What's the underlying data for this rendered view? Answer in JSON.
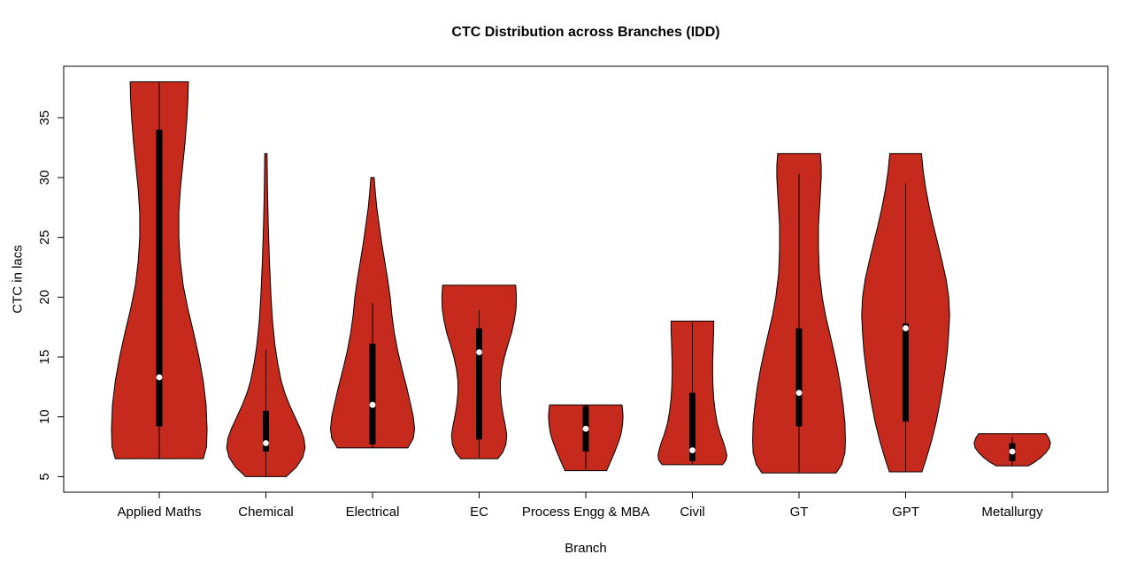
{
  "chart_data": {
    "type": "violin",
    "title": "CTC Distribution across Branches (IDD)",
    "xlabel": "Branch",
    "ylabel": "CTC in lacs",
    "ylim": [
      3.7,
      39.3
    ],
    "yticks": [
      5,
      10,
      15,
      20,
      25,
      30,
      35
    ],
    "grid": false,
    "legend": "none",
    "fill_color": "#C62A1C",
    "outline_color": "#000000",
    "box_color": "#000000",
    "median_color": "#FFFFFF",
    "violins": [
      {
        "label": "Applied Maths",
        "min": 6.5,
        "max": 38.0,
        "q1": 9.2,
        "median": 13.3,
        "q3": 34.0,
        "whisker_low": 6.5,
        "whisker_high": 38.0,
        "width_scale": 1.0,
        "profile": [
          [
            6.5,
            0.92
          ],
          [
            7.5,
            0.99
          ],
          [
            9,
            1.0
          ],
          [
            11,
            0.98
          ],
          [
            13,
            0.92
          ],
          [
            15,
            0.83
          ],
          [
            17,
            0.72
          ],
          [
            19,
            0.6
          ],
          [
            21,
            0.5
          ],
          [
            23,
            0.44
          ],
          [
            25,
            0.41
          ],
          [
            27,
            0.41
          ],
          [
            29,
            0.44
          ],
          [
            31,
            0.49
          ],
          [
            33,
            0.54
          ],
          [
            35,
            0.58
          ],
          [
            36.5,
            0.6
          ],
          [
            38,
            0.61
          ]
        ]
      },
      {
        "label": "Chemical",
        "min": 5.0,
        "max": 32.0,
        "q1": 7.1,
        "median": 7.8,
        "q3": 10.5,
        "whisker_low": 5.0,
        "whisker_high": 15.6,
        "width_scale": 0.82,
        "profile": [
          [
            5,
            0.52
          ],
          [
            5.8,
            0.78
          ],
          [
            6.6,
            0.94
          ],
          [
            7.4,
            1.0
          ],
          [
            8.2,
            0.97
          ],
          [
            9,
            0.88
          ],
          [
            10,
            0.74
          ],
          [
            11,
            0.6
          ],
          [
            12,
            0.48
          ],
          [
            13,
            0.39
          ],
          [
            14.5,
            0.3
          ],
          [
            16,
            0.23
          ],
          [
            18,
            0.17
          ],
          [
            20,
            0.13
          ],
          [
            23,
            0.09
          ],
          [
            26,
            0.06
          ],
          [
            29,
            0.04
          ],
          [
            32,
            0.03
          ]
        ]
      },
      {
        "label": "Electrical",
        "min": 7.4,
        "max": 30.0,
        "q1": 7.7,
        "median": 11.0,
        "q3": 16.1,
        "whisker_low": 7.4,
        "whisker_high": 19.5,
        "width_scale": 0.88,
        "profile": [
          [
            7.4,
            0.84
          ],
          [
            8.2,
            0.97
          ],
          [
            9,
            1.0
          ],
          [
            10,
            0.97
          ],
          [
            11,
            0.91
          ],
          [
            12.5,
            0.81
          ],
          [
            14,
            0.7
          ],
          [
            15.5,
            0.6
          ],
          [
            17,
            0.52
          ],
          [
            18.5,
            0.46
          ],
          [
            20,
            0.42
          ],
          [
            21.5,
            0.36
          ],
          [
            23,
            0.29
          ],
          [
            24.5,
            0.22
          ],
          [
            26,
            0.16
          ],
          [
            27.5,
            0.1
          ],
          [
            29,
            0.06
          ],
          [
            30,
            0.04
          ]
        ]
      },
      {
        "label": "EC",
        "min": 6.5,
        "max": 21.0,
        "q1": 8.1,
        "median": 15.4,
        "q3": 17.4,
        "whisker_low": 6.6,
        "whisker_high": 18.9,
        "width_scale": 0.78,
        "profile": [
          [
            6.5,
            0.5
          ],
          [
            7,
            0.63
          ],
          [
            7.7,
            0.72
          ],
          [
            8.5,
            0.74
          ],
          [
            9.3,
            0.7
          ],
          [
            10.2,
            0.64
          ],
          [
            11,
            0.6
          ],
          [
            12,
            0.57
          ],
          [
            13,
            0.57
          ],
          [
            14,
            0.61
          ],
          [
            15,
            0.68
          ],
          [
            16,
            0.77
          ],
          [
            17,
            0.87
          ],
          [
            18,
            0.94
          ],
          [
            19,
            0.99
          ],
          [
            20,
            1.0
          ],
          [
            21,
            0.98
          ]
        ]
      },
      {
        "label": "Process Engg & MBA",
        "min": 5.5,
        "max": 11.0,
        "q1": 7.1,
        "median": 9.0,
        "q3": 10.9,
        "whisker_low": 5.6,
        "whisker_high": 11.0,
        "width_scale": 0.78,
        "profile": [
          [
            5.5,
            0.56
          ],
          [
            6,
            0.63
          ],
          [
            6.5,
            0.7
          ],
          [
            7,
            0.77
          ],
          [
            7.5,
            0.83
          ],
          [
            8,
            0.89
          ],
          [
            8.5,
            0.94
          ],
          [
            9,
            0.97
          ],
          [
            9.5,
            0.99
          ],
          [
            10,
            1.0
          ],
          [
            10.5,
            0.99
          ],
          [
            11,
            0.97
          ]
        ]
      },
      {
        "label": "Civil",
        "min": 6.0,
        "max": 18.0,
        "q1": 6.3,
        "median": 7.2,
        "q3": 12.0,
        "whisker_low": 6.0,
        "whisker_high": 17.9,
        "width_scale": 0.72,
        "profile": [
          [
            6,
            0.88
          ],
          [
            6.4,
            0.98
          ],
          [
            6.8,
            1.0
          ],
          [
            7.2,
            0.97
          ],
          [
            7.8,
            0.91
          ],
          [
            8.5,
            0.82
          ],
          [
            9.5,
            0.72
          ],
          [
            10.5,
            0.66
          ],
          [
            11.5,
            0.62
          ],
          [
            12.5,
            0.6
          ],
          [
            13.5,
            0.59
          ],
          [
            14.5,
            0.59
          ],
          [
            15.5,
            0.6
          ],
          [
            16.5,
            0.61
          ],
          [
            17.2,
            0.62
          ],
          [
            18,
            0.62
          ]
        ]
      },
      {
        "label": "GT",
        "min": 5.3,
        "max": 32.0,
        "q1": 9.2,
        "median": 12.0,
        "q3": 17.4,
        "whisker_low": 5.3,
        "whisker_high": 30.3,
        "width_scale": 0.97,
        "profile": [
          [
            5.3,
            0.8
          ],
          [
            6,
            0.92
          ],
          [
            7,
            0.99
          ],
          [
            8,
            1.0
          ],
          [
            9.5,
            0.99
          ],
          [
            11,
            0.95
          ],
          [
            12.5,
            0.9
          ],
          [
            14,
            0.83
          ],
          [
            15.5,
            0.75
          ],
          [
            17,
            0.66
          ],
          [
            18.5,
            0.57
          ],
          [
            20,
            0.5
          ],
          [
            22,
            0.44
          ],
          [
            24,
            0.42
          ],
          [
            26,
            0.42
          ],
          [
            28,
            0.45
          ],
          [
            30,
            0.48
          ],
          [
            31,
            0.48
          ],
          [
            32,
            0.46
          ]
        ]
      },
      {
        "label": "GPT",
        "min": 5.4,
        "max": 32.0,
        "q1": 9.6,
        "median": 17.4,
        "q3": 17.8,
        "whisker_low": 5.4,
        "whisker_high": 29.5,
        "width_scale": 0.92,
        "profile": [
          [
            5.4,
            0.37
          ],
          [
            6.5,
            0.47
          ],
          [
            8,
            0.59
          ],
          [
            9.5,
            0.69
          ],
          [
            11,
            0.77
          ],
          [
            12.5,
            0.84
          ],
          [
            14,
            0.9
          ],
          [
            15.5,
            0.95
          ],
          [
            17,
            0.98
          ],
          [
            18.5,
            1.0
          ],
          [
            20,
            0.98
          ],
          [
            21.5,
            0.92
          ],
          [
            23,
            0.83
          ],
          [
            24.5,
            0.73
          ],
          [
            26,
            0.63
          ],
          [
            27.5,
            0.54
          ],
          [
            29,
            0.46
          ],
          [
            30.5,
            0.4
          ],
          [
            32,
            0.36
          ]
        ]
      },
      {
        "label": "Metallurgy",
        "min": 5.9,
        "max": 8.6,
        "q1": 6.3,
        "median": 7.1,
        "q3": 7.8,
        "whisker_low": 5.9,
        "whisker_high": 8.3,
        "width_scale": 0.8,
        "profile": [
          [
            5.9,
            0.42
          ],
          [
            6.2,
            0.58
          ],
          [
            6.6,
            0.75
          ],
          [
            7,
            0.88
          ],
          [
            7.4,
            0.97
          ],
          [
            7.8,
            1.0
          ],
          [
            8.2,
            0.96
          ],
          [
            8.6,
            0.88
          ]
        ]
      }
    ]
  }
}
